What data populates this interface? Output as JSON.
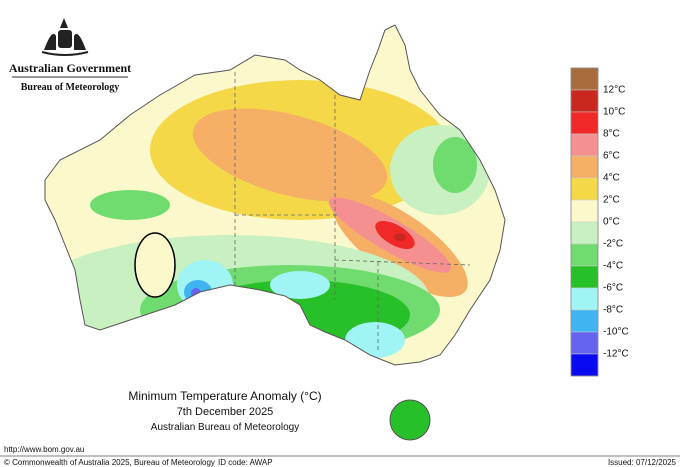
{
  "header": {
    "government": "Australian Government",
    "agency": "Bureau of Meteorology"
  },
  "title": {
    "line1": "Minimum Temperature Anomaly (°C)",
    "line2": "7th December 2025",
    "line3": "Australian Bureau of Meteorology"
  },
  "legend": {
    "labels": [
      "12°C",
      "10°C",
      "8°C",
      "6°C",
      "4°C",
      "2°C",
      "0°C",
      "-2°C",
      "-4°C",
      "-6°C",
      "-8°C",
      "-10°C",
      "-12°C"
    ],
    "colors": [
      "#a86b3a",
      "#c82820",
      "#f02828",
      "#f59090",
      "#f5b065",
      "#f5d848",
      "#fbf8cc",
      "#c8f0c0",
      "#70dc70",
      "#28c028",
      "#a0f4f4",
      "#40b4f0",
      "#6464f0",
      "#0a0af0"
    ]
  },
  "footer": {
    "url": "http://www.bom.gov.au",
    "copyright": "© Commonwealth of Australia 2025, Bureau of Meteorology",
    "id_code": "ID code: AWAP",
    "issued": "Issued: 07/12/2025"
  }
}
